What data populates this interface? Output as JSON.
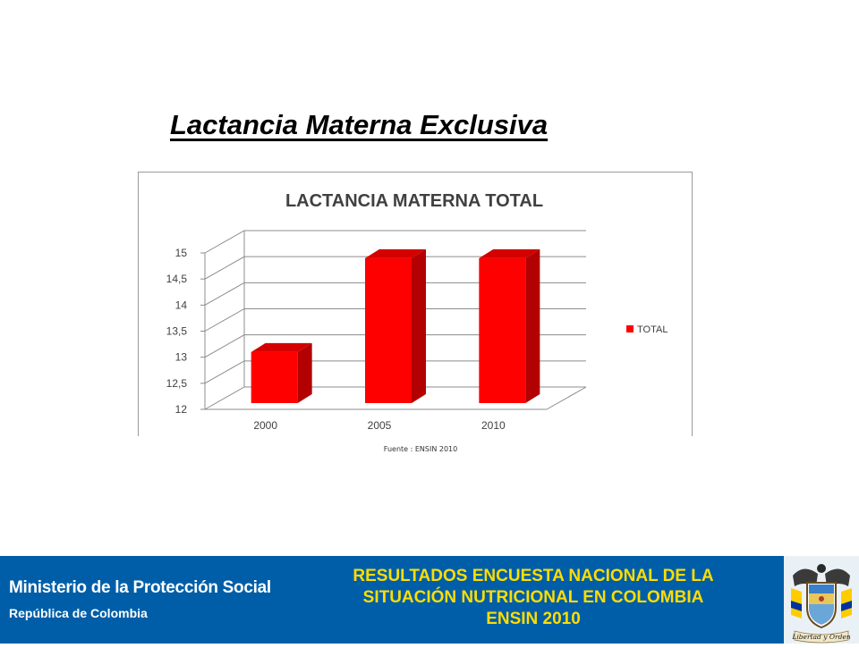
{
  "slide": {
    "title": "Lactancia Materna Exclusiva",
    "source_note": "Fuente : ENSIN 2010"
  },
  "footer": {
    "ministry": "Ministerio de la Protección Social",
    "republic": "República de Colombia",
    "survey_line1": "RESULTADOS ENCUESTA NACIONAL DE LA",
    "survey_line2": "SITUACIÓN NUTRICIONAL EN COLOMBIA",
    "survey_line3": "ENSIN  2010",
    "emblem_motto": "Libertad y Orden",
    "background_color": "#005ea8",
    "text_color_left": "#ffffff",
    "text_color_right": "#ffdd00"
  },
  "chart_data": {
    "type": "bar",
    "style": "3d-clustered-column",
    "title": "LACTANCIA MATERNA TOTAL",
    "categories": [
      "2000",
      "2005",
      "2010"
    ],
    "series": [
      {
        "name": "TOTAL",
        "color": "#ff0000",
        "values": [
          13.1,
          14.9,
          14.9
        ]
      }
    ],
    "y_ticks": [
      "12",
      "12,5",
      "13",
      "13,5",
      "14",
      "14,5",
      "15"
    ],
    "ylim": [
      12,
      15
    ],
    "xlabel": "",
    "ylabel": "",
    "grid": true,
    "legend": "right"
  }
}
